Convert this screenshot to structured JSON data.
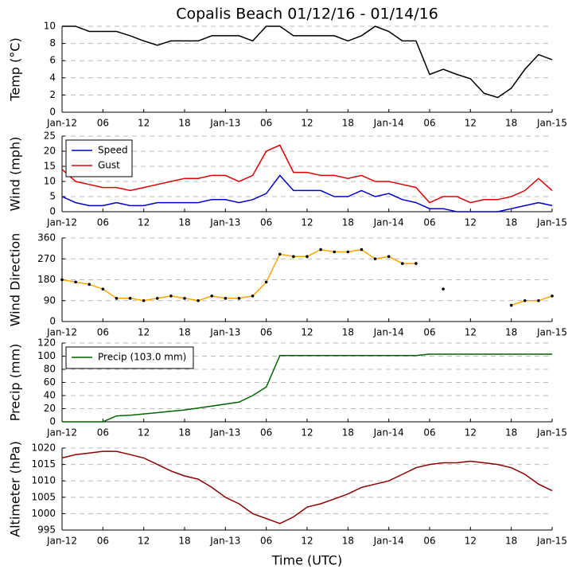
{
  "chart_data": [
    {
      "type": "line",
      "title": "Copalis Beach 01/12/16 - 01/14/16",
      "ylabel": "Temp (°C)",
      "categories": [
        "Jan-12",
        null,
        null,
        "06",
        null,
        null,
        "12",
        null,
        null,
        "18",
        null,
        null,
        "Jan-13",
        null,
        null,
        "06",
        null,
        null,
        "12",
        null,
        null,
        "18",
        null,
        null,
        "Jan-14",
        null,
        null,
        "06",
        null,
        null,
        "12",
        null,
        null,
        "18",
        null,
        null,
        "Jan-15"
      ],
      "series": [
        {
          "color": "#000000",
          "values": [
            10,
            10,
            9.4,
            9.4,
            9.4,
            8.9,
            8.3,
            7.8,
            8.3,
            8.3,
            8.3,
            8.9,
            8.9,
            8.9,
            8.3,
            10,
            10,
            8.9,
            8.9,
            8.9,
            8.9,
            8.3,
            8.9,
            10,
            9.4,
            8.3,
            8.3,
            4.4,
            5,
            4.4,
            3.9,
            2.2,
            1.7,
            2.8,
            5,
            6.7,
            6.1
          ]
        }
      ],
      "ylim": [
        0,
        10
      ],
      "yticks": [
        0,
        2,
        4,
        6,
        8,
        10
      ],
      "grid": true
    },
    {
      "type": "line",
      "ylabel": "Wind (mph)",
      "categories": [
        "Jan-12",
        null,
        null,
        "06",
        null,
        null,
        "12",
        null,
        null,
        "18",
        null,
        null,
        "Jan-13",
        null,
        null,
        "06",
        null,
        null,
        "12",
        null,
        null,
        "18",
        null,
        null,
        "Jan-14",
        null,
        null,
        "06",
        null,
        null,
        "12",
        null,
        null,
        "18",
        null,
        null,
        "Jan-15"
      ],
      "series": [
        {
          "name": "Speed",
          "color": "#0000cc",
          "values": [
            5,
            3,
            2,
            2,
            3,
            2,
            2,
            3,
            3,
            3,
            3,
            4,
            4,
            3,
            4,
            6,
            12,
            7,
            7,
            7,
            5,
            5,
            7,
            5,
            6,
            4,
            3,
            1,
            1,
            0,
            0,
            0,
            0,
            1,
            2,
            3,
            2
          ]
        },
        {
          "name": "Gust",
          "color": "#dd0000",
          "values": [
            14,
            10,
            9,
            8,
            8,
            7,
            8,
            9,
            10,
            11,
            11,
            12,
            12,
            10,
            12,
            20,
            22,
            13,
            13,
            12,
            12,
            11,
            12,
            10,
            10,
            9,
            8,
            3,
            5,
            5,
            3,
            4,
            4,
            5,
            7,
            11,
            7
          ]
        }
      ],
      "ylim": [
        0,
        25
      ],
      "yticks": [
        0,
        5,
        10,
        15,
        20,
        25
      ],
      "grid": true,
      "legend": "upper left"
    },
    {
      "type": "line",
      "ylabel": "Wind Direction",
      "markers": true,
      "categories": [
        "Jan-12",
        null,
        null,
        "06",
        null,
        null,
        "12",
        null,
        null,
        "18",
        null,
        null,
        "Jan-13",
        null,
        null,
        "06",
        null,
        null,
        "12",
        null,
        null,
        "18",
        null,
        null,
        "Jan-14",
        null,
        null,
        "06",
        null,
        null,
        "12",
        null,
        null,
        "18",
        null,
        null,
        "Jan-15"
      ],
      "series": [
        {
          "color": "#ffa500",
          "values": [
            180,
            170,
            160,
            140,
            100,
            100,
            90,
            100,
            110,
            100,
            90,
            110,
            100,
            100,
            110,
            170,
            290,
            280,
            280,
            310,
            300,
            300,
            310,
            270,
            280,
            250,
            250,
            null,
            140,
            null,
            null,
            null,
            null,
            70,
            90,
            90,
            110
          ]
        }
      ],
      "ylim": [
        0,
        360
      ],
      "yticks": [
        0,
        90,
        180,
        270,
        360
      ],
      "grid": true
    },
    {
      "type": "line",
      "ylabel": "Precip (mm)",
      "categories": [
        "Jan-12",
        null,
        null,
        "06",
        null,
        null,
        "12",
        null,
        null,
        "18",
        null,
        null,
        "Jan-13",
        null,
        null,
        "06",
        null,
        null,
        "12",
        null,
        null,
        "18",
        null,
        null,
        "Jan-14",
        null,
        null,
        "06",
        null,
        null,
        "12",
        null,
        null,
        "18",
        null,
        null,
        "Jan-15"
      ],
      "series": [
        {
          "name": "Precip (103.0 mm)",
          "color": "#006400",
          "values": [
            0,
            0,
            0,
            0,
            9,
            10,
            12,
            14,
            16,
            18,
            21,
            24,
            27,
            30,
            40,
            53,
            101,
            101,
            101,
            101,
            101,
            101,
            101,
            101,
            101,
            101,
            101,
            103,
            103,
            103,
            103,
            103,
            103,
            103,
            103,
            103,
            103
          ]
        }
      ],
      "ylim": [
        0,
        120
      ],
      "yticks": [
        0,
        20,
        40,
        60,
        80,
        100,
        120
      ],
      "grid": true,
      "legend": "upper left"
    },
    {
      "type": "line",
      "ylabel": "Altimeter (hPa)",
      "xlabel": "Time (UTC)",
      "categories": [
        "Jan-12",
        null,
        null,
        "06",
        null,
        null,
        "12",
        null,
        null,
        "18",
        null,
        null,
        "Jan-13",
        null,
        null,
        "06",
        null,
        null,
        "12",
        null,
        null,
        "18",
        null,
        null,
        "Jan-14",
        null,
        null,
        "06",
        null,
        null,
        "12",
        null,
        null,
        "18",
        null,
        null,
        "Jan-15"
      ],
      "series": [
        {
          "color": "#8b0000",
          "values": [
            1017,
            1018,
            1018.5,
            1019,
            1019,
            1018,
            1017,
            1015,
            1013,
            1011.5,
            1010.5,
            1008,
            1005,
            1003,
            1000,
            998.5,
            997,
            999,
            1002,
            1003,
            1004.5,
            1006,
            1008,
            1009,
            1010,
            1012,
            1014,
            1015,
            1015.5,
            1015.5,
            1016,
            1015.5,
            1015,
            1014,
            1012,
            1009,
            1007
          ]
        }
      ],
      "ylim": [
        995,
        1020
      ],
      "yticks": [
        995,
        1000,
        1005,
        1010,
        1015,
        1020
      ],
      "grid": true
    }
  ]
}
